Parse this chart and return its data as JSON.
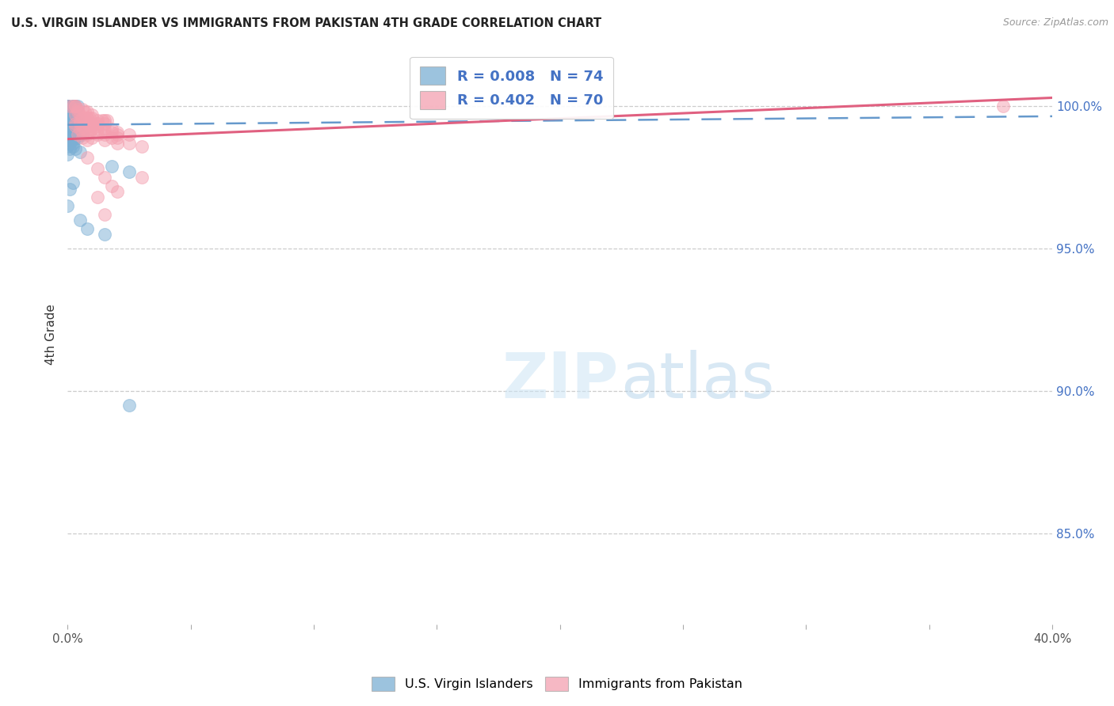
{
  "title": "U.S. VIRGIN ISLANDER VS IMMIGRANTS FROM PAKISTAN 4TH GRADE CORRELATION CHART",
  "source": "Source: ZipAtlas.com",
  "ylabel": "4th Grade",
  "ytick_labels": [
    "100.0%",
    "95.0%",
    "90.0%",
    "85.0%"
  ],
  "ytick_values": [
    1.0,
    0.95,
    0.9,
    0.85
  ],
  "xmin": 0.0,
  "xmax": 0.4,
  "ymin": 0.818,
  "ymax": 1.022,
  "legend_blue_label": "U.S. Virgin Islanders",
  "legend_pink_label": "Immigrants from Pakistan",
  "R_blue": "0.008",
  "N_blue": "74",
  "R_pink": "0.402",
  "N_pink": "70",
  "blue_color": "#7BAFD4",
  "pink_color": "#F4A0B0",
  "trendline_blue_color": "#6699CC",
  "trendline_pink_color": "#E06080",
  "blue_trend_x": [
    0.0,
    0.4
  ],
  "blue_trend_y": [
    0.9935,
    0.9965
  ],
  "pink_trend_x": [
    0.0,
    0.4
  ],
  "pink_trend_y": [
    0.9885,
    1.003
  ],
  "blue_scatter": [
    [
      0.0,
      1.0
    ],
    [
      0.0,
      1.0
    ],
    [
      0.0,
      1.0
    ],
    [
      0.0,
      1.0
    ],
    [
      0.0,
      1.0
    ],
    [
      0.002,
      1.0
    ],
    [
      0.002,
      1.0
    ],
    [
      0.003,
      1.0
    ],
    [
      0.004,
      1.0
    ],
    [
      0.003,
      0.999
    ],
    [
      0.001,
      0.999
    ],
    [
      0.001,
      0.998
    ],
    [
      0.002,
      0.998
    ],
    [
      0.002,
      0.997
    ],
    [
      0.001,
      0.997
    ],
    [
      0.003,
      0.997
    ],
    [
      0.003,
      0.996
    ],
    [
      0.004,
      0.996
    ],
    [
      0.001,
      0.996
    ],
    [
      0.0,
      0.995
    ],
    [
      0.001,
      0.995
    ],
    [
      0.002,
      0.995
    ],
    [
      0.003,
      0.995
    ],
    [
      0.0,
      0.994
    ],
    [
      0.001,
      0.994
    ],
    [
      0.002,
      0.994
    ],
    [
      0.003,
      0.994
    ],
    [
      0.004,
      0.994
    ],
    [
      0.0,
      0.993
    ],
    [
      0.001,
      0.993
    ],
    [
      0.002,
      0.993
    ],
    [
      0.003,
      0.993
    ],
    [
      0.004,
      0.993
    ],
    [
      0.0,
      0.992
    ],
    [
      0.001,
      0.992
    ],
    [
      0.002,
      0.992
    ],
    [
      0.003,
      0.992
    ],
    [
      0.0,
      0.991
    ],
    [
      0.001,
      0.991
    ],
    [
      0.002,
      0.991
    ],
    [
      0.003,
      0.991
    ],
    [
      0.0,
      0.99
    ],
    [
      0.001,
      0.99
    ],
    [
      0.002,
      0.99
    ],
    [
      0.005,
      0.99
    ],
    [
      0.006,
      0.99
    ],
    [
      0.0,
      0.989
    ],
    [
      0.001,
      0.989
    ],
    [
      0.002,
      0.989
    ],
    [
      0.003,
      0.989
    ],
    [
      0.004,
      0.989
    ],
    [
      0.0,
      0.988
    ],
    [
      0.001,
      0.988
    ],
    [
      0.002,
      0.988
    ],
    [
      0.001,
      0.987
    ],
    [
      0.002,
      0.987
    ],
    [
      0.0,
      0.986
    ],
    [
      0.002,
      0.986
    ],
    [
      0.001,
      0.985
    ],
    [
      0.003,
      0.985
    ],
    [
      0.005,
      0.984
    ],
    [
      0.0,
      0.983
    ],
    [
      0.018,
      0.979
    ],
    [
      0.025,
      0.977
    ],
    [
      0.002,
      0.973
    ],
    [
      0.001,
      0.971
    ],
    [
      0.0,
      0.965
    ],
    [
      0.005,
      0.96
    ],
    [
      0.008,
      0.957
    ],
    [
      0.015,
      0.955
    ],
    [
      0.025,
      0.895
    ]
  ],
  "pink_scatter": [
    [
      0.001,
      1.0
    ],
    [
      0.002,
      1.0
    ],
    [
      0.003,
      1.0
    ],
    [
      0.003,
      1.0
    ],
    [
      0.004,
      0.999
    ],
    [
      0.006,
      0.999
    ],
    [
      0.007,
      0.998
    ],
    [
      0.004,
      0.998
    ],
    [
      0.008,
      0.998
    ],
    [
      0.01,
      0.997
    ],
    [
      0.003,
      0.997
    ],
    [
      0.005,
      0.997
    ],
    [
      0.006,
      0.996
    ],
    [
      0.008,
      0.996
    ],
    [
      0.009,
      0.996
    ],
    [
      0.01,
      0.996
    ],
    [
      0.005,
      0.995
    ],
    [
      0.007,
      0.995
    ],
    [
      0.012,
      0.995
    ],
    [
      0.014,
      0.995
    ],
    [
      0.015,
      0.995
    ],
    [
      0.016,
      0.995
    ],
    [
      0.003,
      0.994
    ],
    [
      0.005,
      0.994
    ],
    [
      0.008,
      0.994
    ],
    [
      0.01,
      0.994
    ],
    [
      0.012,
      0.994
    ],
    [
      0.015,
      0.994
    ],
    [
      0.003,
      0.993
    ],
    [
      0.006,
      0.993
    ],
    [
      0.009,
      0.993
    ],
    [
      0.01,
      0.993
    ],
    [
      0.012,
      0.993
    ],
    [
      0.005,
      0.992
    ],
    [
      0.007,
      0.992
    ],
    [
      0.01,
      0.992
    ],
    [
      0.012,
      0.992
    ],
    [
      0.015,
      0.992
    ],
    [
      0.018,
      0.992
    ],
    [
      0.006,
      0.991
    ],
    [
      0.009,
      0.991
    ],
    [
      0.015,
      0.991
    ],
    [
      0.018,
      0.991
    ],
    [
      0.02,
      0.991
    ],
    [
      0.004,
      0.99
    ],
    [
      0.008,
      0.99
    ],
    [
      0.012,
      0.99
    ],
    [
      0.015,
      0.99
    ],
    [
      0.02,
      0.99
    ],
    [
      0.025,
      0.99
    ],
    [
      0.006,
      0.989
    ],
    [
      0.01,
      0.989
    ],
    [
      0.018,
      0.989
    ],
    [
      0.02,
      0.989
    ],
    [
      0.008,
      0.988
    ],
    [
      0.015,
      0.988
    ],
    [
      0.02,
      0.987
    ],
    [
      0.025,
      0.987
    ],
    [
      0.03,
      0.986
    ],
    [
      0.008,
      0.982
    ],
    [
      0.012,
      0.978
    ],
    [
      0.015,
      0.975
    ],
    [
      0.03,
      0.975
    ],
    [
      0.018,
      0.972
    ],
    [
      0.02,
      0.97
    ],
    [
      0.012,
      0.968
    ],
    [
      0.015,
      0.962
    ],
    [
      0.38,
      1.0
    ]
  ]
}
